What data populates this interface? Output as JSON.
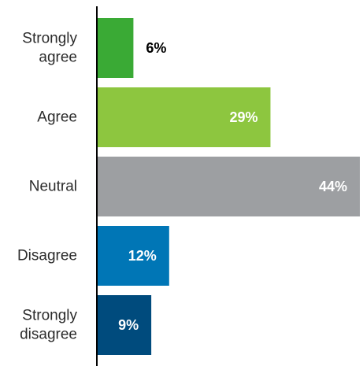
{
  "chart_data": {
    "type": "bar",
    "orientation": "horizontal",
    "categories": [
      "Strongly agree",
      "Agree",
      "Neutral",
      "Disagree",
      "Strongly disagree"
    ],
    "category_lines": [
      [
        "Strongly",
        "agree"
      ],
      [
        "Agree"
      ],
      [
        "Neutral"
      ],
      [
        "Disagree"
      ],
      [
        "Strongly",
        "disagree"
      ]
    ],
    "values": [
      6,
      29,
      44,
      12,
      9
    ],
    "value_labels": [
      "6%",
      "29%",
      "44%",
      "12%",
      "9%"
    ],
    "colors": [
      "#3aaa35",
      "#8dc63f",
      "#9d9fa2",
      "#0076b6",
      "#004b7d"
    ],
    "value_label_colors": [
      "#000000",
      "#ffffff",
      "#ffffff",
      "#ffffff",
      "#ffffff"
    ],
    "value_label_inside": [
      false,
      true,
      true,
      true,
      true
    ],
    "xlim": [
      0,
      44
    ],
    "grid": false,
    "legend": "none",
    "title": "",
    "xlabel": "",
    "ylabel": ""
  }
}
